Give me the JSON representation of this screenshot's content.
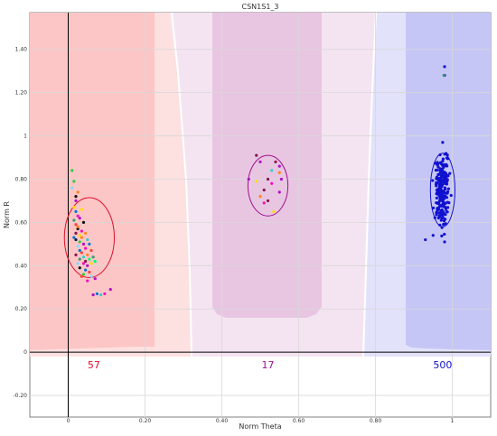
{
  "chart_data": {
    "type": "scatter",
    "title": "CSN1S1_3",
    "xlabel": "Norm Theta",
    "ylabel": "Norm R",
    "xlim": [
      -0.1,
      1.1
    ],
    "ylim": [
      -0.3,
      1.57
    ],
    "x_ticks": [
      {
        "v": 0,
        "label": "0"
      },
      {
        "v": 0.2,
        "label": "0.20"
      },
      {
        "v": 0.4,
        "label": "0.40"
      },
      {
        "v": 0.6,
        "label": "0.60"
      },
      {
        "v": 0.8,
        "label": "0.80"
      },
      {
        "v": 1,
        "label": "1"
      }
    ],
    "y_ticks": [
      {
        "v": -0.2,
        "label": "-0.20"
      },
      {
        "v": 0,
        "label": "0"
      },
      {
        "v": 0.2,
        "label": "0.20"
      },
      {
        "v": 0.4,
        "label": "0.40"
      },
      {
        "v": 0.6,
        "label": "0.60"
      },
      {
        "v": 0.8,
        "label": "0.80"
      },
      {
        "v": 1,
        "label": "1"
      },
      {
        "v": 1.2,
        "label": "1.20"
      },
      {
        "v": 1.4,
        "label": "1.40"
      }
    ],
    "grid": true,
    "clusters": [
      {
        "count_label": "57",
        "color": "#e0102a",
        "ellipse": {
          "cx": 0.055,
          "cy": 0.53,
          "rx": 0.065,
          "ry": 0.185
        },
        "points": [
          {
            "x": 0.01,
            "y": 0.84,
            "c": "#2ecc40"
          },
          {
            "x": 0.015,
            "y": 0.79,
            "c": "#2ecc40"
          },
          {
            "x": 0.01,
            "y": 0.76,
            "c": "#7fdbff"
          },
          {
            "x": 0.02,
            "y": 0.72,
            "c": "#111111"
          },
          {
            "x": 0.025,
            "y": 0.74,
            "c": "#ff851b"
          },
          {
            "x": 0.02,
            "y": 0.7,
            "c": "#b10dc9"
          },
          {
            "x": 0.015,
            "y": 0.67,
            "c": "#ffdc00"
          },
          {
            "x": 0.02,
            "y": 0.65,
            "c": "#0074d9"
          },
          {
            "x": 0.025,
            "y": 0.63,
            "c": "#f012be"
          },
          {
            "x": 0.015,
            "y": 0.61,
            "c": "#3d9970"
          },
          {
            "x": 0.02,
            "y": 0.59,
            "c": "#ff4136"
          },
          {
            "x": 0.025,
            "y": 0.57,
            "c": "#111111"
          },
          {
            "x": 0.02,
            "y": 0.55,
            "c": "#85144b"
          },
          {
            "x": 0.03,
            "y": 0.54,
            "c": "#ffdc00"
          },
          {
            "x": 0.02,
            "y": 0.52,
            "c": "#001f3f"
          },
          {
            "x": 0.03,
            "y": 0.51,
            "c": "#2ecc40"
          },
          {
            "x": 0.035,
            "y": 0.53,
            "c": "#ff851b"
          },
          {
            "x": 0.025,
            "y": 0.49,
            "c": "#7fdbff"
          },
          {
            "x": 0.04,
            "y": 0.5,
            "c": "#b10dc9"
          },
          {
            "x": 0.03,
            "y": 0.47,
            "c": "#0074d9"
          },
          {
            "x": 0.045,
            "y": 0.48,
            "c": "#f012be"
          },
          {
            "x": 0.035,
            "y": 0.46,
            "c": "#ff4136"
          },
          {
            "x": 0.04,
            "y": 0.44,
            "c": "#39cccc"
          },
          {
            "x": 0.05,
            "y": 0.45,
            "c": "#ff851b"
          },
          {
            "x": 0.03,
            "y": 0.43,
            "c": "#3d9970"
          },
          {
            "x": 0.045,
            "y": 0.42,
            "c": "#85144b"
          },
          {
            "x": 0.055,
            "y": 0.43,
            "c": "#01ff70"
          },
          {
            "x": 0.04,
            "y": 0.41,
            "c": "#f012be"
          },
          {
            "x": 0.05,
            "y": 0.4,
            "c": "#b10dc9"
          },
          {
            "x": 0.03,
            "y": 0.39,
            "c": "#111111"
          },
          {
            "x": 0.06,
            "y": 0.41,
            "c": "#ffdc00"
          },
          {
            "x": 0.045,
            "y": 0.38,
            "c": "#0074d9"
          },
          {
            "x": 0.055,
            "y": 0.37,
            "c": "#ff4136"
          },
          {
            "x": 0.06,
            "y": 0.35,
            "c": "#7fdbff"
          },
          {
            "x": 0.07,
            "y": 0.34,
            "c": "#b10dc9"
          },
          {
            "x": 0.04,
            "y": 0.36,
            "c": "#2ecc40"
          },
          {
            "x": 0.025,
            "y": 0.58,
            "c": "#ff851b"
          },
          {
            "x": 0.035,
            "y": 0.56,
            "c": "#f012be"
          },
          {
            "x": 0.015,
            "y": 0.53,
            "c": "#0074d9"
          },
          {
            "x": 0.05,
            "y": 0.52,
            "c": "#39cccc"
          },
          {
            "x": 0.04,
            "y": 0.6,
            "c": "#111111"
          },
          {
            "x": 0.06,
            "y": 0.47,
            "c": "#ff4136"
          },
          {
            "x": 0.065,
            "y": 0.44,
            "c": "#3d9970"
          },
          {
            "x": 0.02,
            "y": 0.45,
            "c": "#85144b"
          },
          {
            "x": 0.03,
            "y": 0.62,
            "c": "#b10dc9"
          },
          {
            "x": 0.035,
            "y": 0.66,
            "c": "#ffdc00"
          },
          {
            "x": 0.055,
            "y": 0.5,
            "c": "#0074d9"
          },
          {
            "x": 0.045,
            "y": 0.55,
            "c": "#ff851b"
          },
          {
            "x": 0.07,
            "y": 0.42,
            "c": "#01ff70"
          },
          {
            "x": 0.025,
            "y": 0.41,
            "c": "#7fdbff"
          },
          {
            "x": 0.05,
            "y": 0.33,
            "c": "#f012be"
          },
          {
            "x": 0.11,
            "y": 0.29,
            "c": "#b10dc9"
          },
          {
            "x": 0.075,
            "y": 0.27,
            "c": "#0074d9"
          },
          {
            "x": 0.085,
            "y": 0.265,
            "c": "#39cccc"
          },
          {
            "x": 0.065,
            "y": 0.265,
            "c": "#b10dc9"
          },
          {
            "x": 0.095,
            "y": 0.27,
            "c": "#f012be"
          },
          {
            "x": 0.035,
            "y": 0.35,
            "c": "#ff4136"
          }
        ]
      },
      {
        "count_label": "17",
        "color": "#a0108c",
        "ellipse": {
          "cx": 0.52,
          "cy": 0.77,
          "rx": 0.052,
          "ry": 0.14
        },
        "points": [
          {
            "x": 0.49,
            "y": 0.91,
            "c": "#85144b"
          },
          {
            "x": 0.5,
            "y": 0.88,
            "c": "#b10dc9"
          },
          {
            "x": 0.54,
            "y": 0.88,
            "c": "#85144b"
          },
          {
            "x": 0.55,
            "y": 0.86,
            "c": "#b10dc9"
          },
          {
            "x": 0.53,
            "y": 0.84,
            "c": "#39cccc"
          },
          {
            "x": 0.55,
            "y": 0.83,
            "c": "#ff851b"
          },
          {
            "x": 0.47,
            "y": 0.8,
            "c": "#b10dc9"
          },
          {
            "x": 0.49,
            "y": 0.79,
            "c": "#ffdc00"
          },
          {
            "x": 0.52,
            "y": 0.8,
            "c": "#85144b"
          },
          {
            "x": 0.53,
            "y": 0.78,
            "c": "#f012be"
          },
          {
            "x": 0.555,
            "y": 0.8,
            "c": "#b10dc9"
          },
          {
            "x": 0.51,
            "y": 0.75,
            "c": "#85144b"
          },
          {
            "x": 0.55,
            "y": 0.74,
            "c": "#b10dc9"
          },
          {
            "x": 0.5,
            "y": 0.72,
            "c": "#ff851b"
          },
          {
            "x": 0.52,
            "y": 0.7,
            "c": "#85144b"
          },
          {
            "x": 0.535,
            "y": 0.65,
            "c": "#ffdc00"
          },
          {
            "x": 0.51,
            "y": 0.69,
            "c": "#f012be"
          }
        ]
      },
      {
        "count_label": "500",
        "color": "#1010d0",
        "ellipse": {
          "cx": 0.975,
          "cy": 0.75,
          "rx": 0.032,
          "ry": 0.17
        },
        "points": []
      }
    ]
  }
}
